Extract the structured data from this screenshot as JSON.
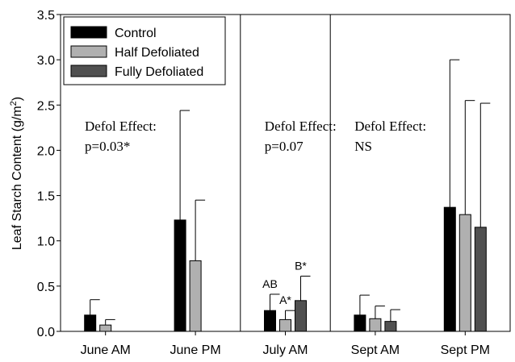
{
  "chart_data": {
    "type": "bar",
    "ylabel_main": "Leaf Starch Content (g/m",
    "ylabel_sup": "2",
    "ylabel_close": ")",
    "ylim": [
      0,
      3.5
    ],
    "yticks": [
      "0.0",
      "0.5",
      "1.0",
      "1.5",
      "2.0",
      "2.5",
      "3.0",
      "3.5"
    ],
    "categories": [
      "June AM",
      "June PM",
      "July AM",
      "Sept AM",
      "Sept PM"
    ],
    "series": [
      {
        "name": "Control",
        "color": "#000000",
        "values": [
          0.18,
          1.23,
          0.23,
          0.18,
          1.37
        ],
        "errors": [
          0.35,
          2.44,
          0.41,
          0.4,
          3.0
        ]
      },
      {
        "name": "Half Defoliated",
        "color": "#b0b0b0",
        "values": [
          0.07,
          0.78,
          0.13,
          0.14,
          1.29
        ],
        "errors": [
          0.13,
          1.45,
          0.23,
          0.28,
          2.55
        ]
      },
      {
        "name": "Fully Defoliated",
        "color": "#505050",
        "values": [
          null,
          null,
          0.34,
          0.11,
          1.15
        ],
        "errors": [
          null,
          null,
          0.61,
          0.24,
          2.52
        ]
      }
    ],
    "annotations": [
      {
        "group": 0,
        "label": "Defol Effect:",
        "value": "p=0.03*"
      },
      {
        "group": 2,
        "label": "Defol Effect:",
        "value": "p=0.07"
      },
      {
        "group": 3,
        "label": "Defol Effect:",
        "value": "NS"
      }
    ],
    "letters": [
      {
        "group": 2,
        "series": 0,
        "text": "AB"
      },
      {
        "group": 2,
        "series": 1,
        "text": "A*"
      },
      {
        "group": 2,
        "series": 2,
        "text": "B*"
      }
    ],
    "legend_position": "top-left",
    "grid": false
  }
}
